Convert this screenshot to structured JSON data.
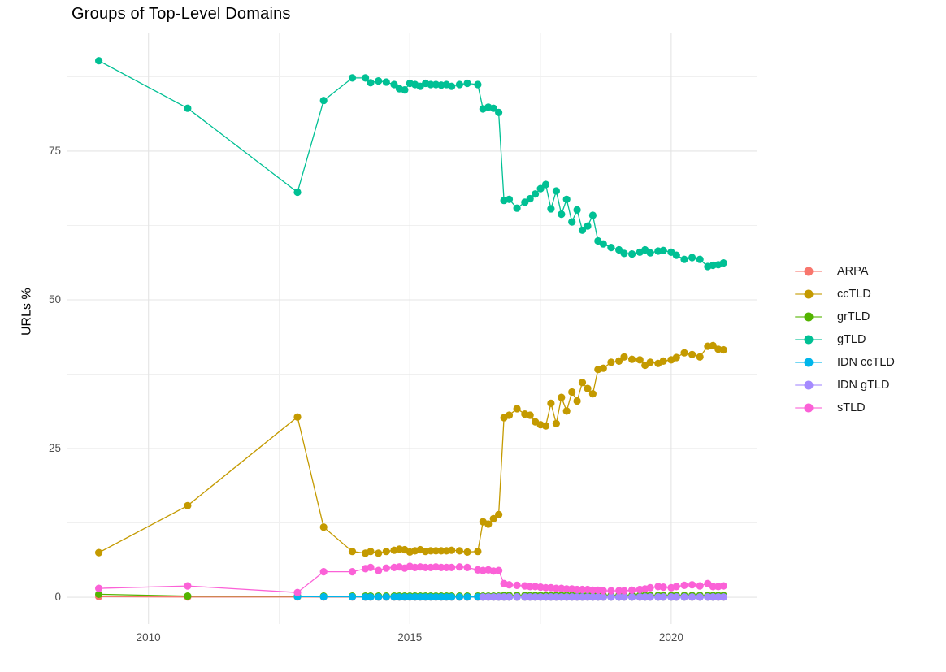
{
  "chart_data": {
    "type": "scatter",
    "title": "Groups of Top-Level Domains",
    "xlabel": "",
    "ylabel": "URLs %",
    "xlim": [
      2008.45,
      2021.65
    ],
    "ylim": [
      -4.5,
      94.8
    ],
    "xticks": [
      "2010",
      "2015",
      "2020"
    ],
    "xtick_values": [
      2010,
      2015,
      2020
    ],
    "yticks": [
      "0",
      "25",
      "50",
      "75"
    ],
    "ytick_values": [
      0,
      25,
      50,
      75
    ],
    "minor_xticks": [
      2012.5,
      2017.5
    ],
    "minor_yticks": [
      12.5,
      37.5,
      62.5,
      87.5
    ],
    "grid": "on",
    "legend_position": "right",
    "background_color": "#FFFFFF",
    "grid_major_color": "#E4E4E4",
    "grid_minor_color": "#F0F0F0",
    "x": [
      2009.05,
      2010.75,
      2012.85,
      2013.35,
      2013.9,
      2014.15,
      2014.25,
      2014.4,
      2014.55,
      2014.7,
      2014.8,
      2014.9,
      2015.0,
      2015.1,
      2015.2,
      2015.3,
      2015.4,
      2015.5,
      2015.6,
      2015.7,
      2015.8,
      2015.95,
      2016.1,
      2016.3,
      2016.4,
      2016.5,
      2016.6,
      2016.7,
      2016.8,
      2016.9,
      2017.05,
      2017.2,
      2017.3,
      2017.4,
      2017.5,
      2017.6,
      2017.7,
      2017.8,
      2017.9,
      2018.0,
      2018.1,
      2018.2,
      2018.3,
      2018.4,
      2018.5,
      2018.6,
      2018.7,
      2018.85,
      2019.0,
      2019.1,
      2019.25,
      2019.4,
      2019.5,
      2019.6,
      2019.75,
      2019.85,
      2020.0,
      2020.1,
      2020.25,
      2020.4,
      2020.55,
      2020.7,
      2020.8,
      2020.9,
      2021.0
    ],
    "series": [
      {
        "name": "ARPA",
        "color": "#F8766D",
        "values": [
          0.1,
          0.05,
          0.05,
          0.03,
          0.03,
          0.02,
          0.02,
          0.02,
          0.02,
          0.02,
          0.02,
          0.02,
          0.02,
          0.02,
          0.02,
          0.02,
          0.02,
          0.02,
          0.02,
          0.02,
          0.02,
          0.02,
          0.02,
          0.02,
          0.02,
          0.02,
          0.02,
          0.02,
          0.02,
          0.02,
          0.02,
          0.02,
          0.02,
          0.02,
          0.02,
          0.02,
          0.02,
          0.02,
          0.02,
          0.02,
          0.02,
          0.02,
          0.02,
          0.02,
          0.02,
          0.02,
          0.02,
          0.02,
          0.02,
          0.02,
          0.02,
          0.02,
          0.02,
          0.02,
          0.02,
          0.02,
          0.02,
          0.02,
          0.02,
          0.02,
          0.02,
          0.02,
          0.02,
          0.02,
          0.02
        ]
      },
      {
        "name": "ccTLD",
        "color": "#C49A00",
        "values": [
          7.5,
          15.4,
          30.3,
          11.8,
          7.7,
          7.4,
          7.7,
          7.4,
          7.7,
          7.9,
          8.1,
          8.0,
          7.6,
          7.8,
          8.0,
          7.7,
          7.8,
          7.8,
          7.8,
          7.8,
          7.9,
          7.8,
          7.6,
          7.7,
          12.7,
          12.3,
          13.2,
          13.9,
          30.2,
          30.6,
          31.7,
          30.8,
          30.6,
          29.5,
          29.0,
          28.8,
          32.6,
          29.2,
          33.6,
          31.3,
          34.5,
          33.0,
          36.1,
          35.1,
          34.2,
          38.3,
          38.5,
          39.5,
          39.7,
          40.4,
          40.0,
          39.9,
          39.0,
          39.5,
          39.3,
          39.7,
          39.9,
          40.3,
          41.1,
          40.8,
          40.4,
          42.2,
          42.3,
          41.7,
          41.6
        ]
      },
      {
        "name": "grTLD",
        "color": "#53B400",
        "values": [
          0.5,
          0.2,
          0.2,
          0.2,
          0.2,
          0.2,
          0.2,
          0.2,
          0.2,
          0.2,
          0.2,
          0.2,
          0.2,
          0.2,
          0.2,
          0.2,
          0.2,
          0.2,
          0.2,
          0.2,
          0.2,
          0.2,
          0.2,
          0.2,
          0.2,
          0.2,
          0.2,
          0.2,
          0.3,
          0.3,
          0.3,
          0.3,
          0.3,
          0.3,
          0.3,
          0.3,
          0.3,
          0.3,
          0.3,
          0.3,
          0.3,
          0.3,
          0.3,
          0.3,
          0.3,
          0.3,
          0.3,
          0.3,
          0.3,
          0.3,
          0.3,
          0.3,
          0.3,
          0.3,
          0.3,
          0.3,
          0.3,
          0.3,
          0.3,
          0.3,
          0.3,
          0.3,
          0.3,
          0.3,
          0.3
        ]
      },
      {
        "name": "gTLD",
        "color": "#00C094",
        "values": [
          90.2,
          82.2,
          68.1,
          83.5,
          87.3,
          87.3,
          86.5,
          86.8,
          86.6,
          86.2,
          85.5,
          85.3,
          86.4,
          86.2,
          85.9,
          86.4,
          86.2,
          86.2,
          86.1,
          86.2,
          85.9,
          86.2,
          86.4,
          86.2,
          82.1,
          82.4,
          82.2,
          81.5,
          66.7,
          66.9,
          65.4,
          66.4,
          67.0,
          67.8,
          68.7,
          69.4,
          65.3,
          68.3,
          64.4,
          66.9,
          63.1,
          65.1,
          61.7,
          62.4,
          64.2,
          59.9,
          59.4,
          58.8,
          58.4,
          57.8,
          57.7,
          58.0,
          58.4,
          57.9,
          58.2,
          58.3,
          58.0,
          57.5,
          56.8,
          57.1,
          56.8,
          55.6,
          55.8,
          55.9,
          56.2
        ]
      },
      {
        "name": "IDN ccTLD",
        "color": "#00B6EB",
        "values": [
          null,
          null,
          0.1,
          0.08,
          0.08,
          0.05,
          0.05,
          0.05,
          0.05,
          0.05,
          0.05,
          0.05,
          0.05,
          0.05,
          0.05,
          0.05,
          0.05,
          0.05,
          0.05,
          0.05,
          0.05,
          0.05,
          0.05,
          0.05,
          0.05,
          0.05,
          0.05,
          0.05,
          0.05,
          0.05,
          0.05,
          0.05,
          0.05,
          0.05,
          0.05,
          0.05,
          0.05,
          0.05,
          0.05,
          0.05,
          0.05,
          0.05,
          0.05,
          0.05,
          0.05,
          0.05,
          0.05,
          0.05,
          0.05,
          0.05,
          0.05,
          0.05,
          0.05,
          0.05,
          0.05,
          0.05,
          0.05,
          0.05,
          0.05,
          0.05,
          0.05,
          0.05,
          0.05,
          0.05,
          0.05
        ]
      },
      {
        "name": "IDN gTLD",
        "color": "#A58AFF",
        "values": [
          null,
          null,
          null,
          null,
          null,
          null,
          null,
          null,
          null,
          null,
          null,
          null,
          null,
          null,
          null,
          null,
          null,
          null,
          null,
          null,
          null,
          null,
          null,
          null,
          0.05,
          0.05,
          0.05,
          0.05,
          0.05,
          0.05,
          0.05,
          0.05,
          0.05,
          0.05,
          0.05,
          0.05,
          0.05,
          0.05,
          0.05,
          0.05,
          0.05,
          0.05,
          0.05,
          0.05,
          0.05,
          0.05,
          0.05,
          0.05,
          0.05,
          0.05,
          0.05,
          0.05,
          0.05,
          0.05,
          0.05,
          0.05,
          0.05,
          0.05,
          0.05,
          0.05,
          0.05,
          0.05,
          0.05,
          0.05,
          0.05
        ]
      },
      {
        "name": "sTLD",
        "color": "#FB61D7",
        "values": [
          1.5,
          1.9,
          0.8,
          4.3,
          4.3,
          4.8,
          5.0,
          4.5,
          4.9,
          5.0,
          5.1,
          4.9,
          5.2,
          5.0,
          5.1,
          5.0,
          5.0,
          5.1,
          5.0,
          5.0,
          5.0,
          5.1,
          5.0,
          4.6,
          4.5,
          4.6,
          4.4,
          4.5,
          2.3,
          2.1,
          2.0,
          1.9,
          1.8,
          1.8,
          1.7,
          1.6,
          1.6,
          1.5,
          1.5,
          1.4,
          1.4,
          1.3,
          1.3,
          1.3,
          1.2,
          1.2,
          1.1,
          1.1,
          1.1,
          1.1,
          1.2,
          1.3,
          1.4,
          1.6,
          1.8,
          1.7,
          1.6,
          1.8,
          2.0,
          2.1,
          1.9,
          2.3,
          1.8,
          1.8,
          1.9
        ]
      }
    ]
  }
}
